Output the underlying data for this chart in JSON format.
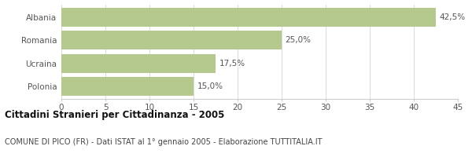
{
  "categories": [
    "Albania",
    "Romania",
    "Ucraina",
    "Polonia"
  ],
  "values": [
    42.5,
    25.0,
    17.5,
    15.0
  ],
  "labels": [
    "42,5%",
    "25,0%",
    "17,5%",
    "15,0%"
  ],
  "bar_color": "#b5c98e",
  "xlim": [
    0,
    45
  ],
  "xticks": [
    0,
    5,
    10,
    15,
    20,
    25,
    30,
    35,
    40,
    45
  ],
  "title": "Cittadini Stranieri per Cittadinanza - 2005",
  "subtitle": "COMUNE DI PICO (FR) - Dati ISTAT al 1° gennaio 2005 - Elaborazione TUTTITALIA.IT",
  "title_fontsize": 8.5,
  "subtitle_fontsize": 7.0,
  "label_fontsize": 7.5,
  "tick_fontsize": 7.5,
  "bar_height": 0.82,
  "background_color": "#ffffff"
}
